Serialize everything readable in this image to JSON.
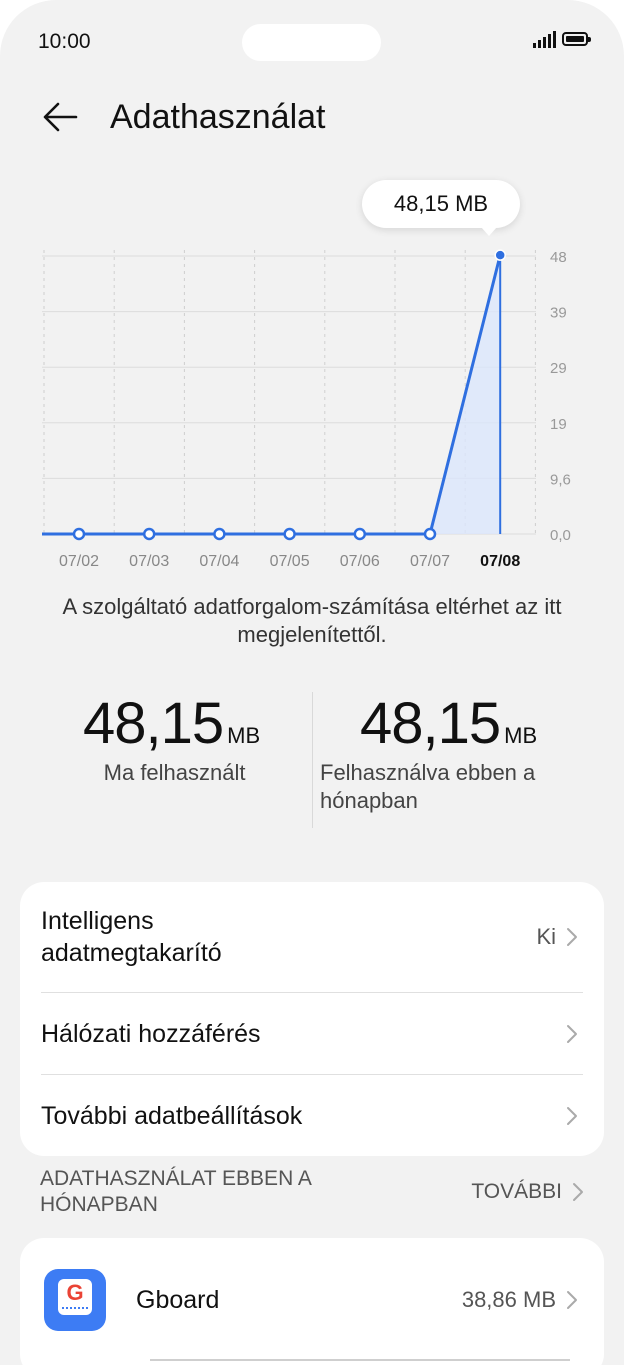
{
  "status_bar": {
    "time": "10:00"
  },
  "header": {
    "title": "Adathasználat"
  },
  "chart_data": {
    "type": "area",
    "categories": [
      "07/02",
      "07/03",
      "07/04",
      "07/05",
      "07/06",
      "07/07",
      "07/08"
    ],
    "series": [
      {
        "values": [
          0,
          0,
          0,
          0,
          0,
          0,
          48.15
        ]
      }
    ],
    "y_ticks": [
      "48",
      "39",
      "29",
      "19",
      "9,6",
      "0,0"
    ],
    "ylim": [
      0,
      48
    ],
    "highlighted_label": "48,15 MB",
    "selected_category": "07/08",
    "grid": true,
    "colors": {
      "line": "#2f6fe0",
      "fill": "#dbe6fb"
    }
  },
  "disclaimer": "A szolgáltató adatforgalom-számítása eltérhet az itt megjelenítettől.",
  "stats": {
    "today": {
      "value": "48,15",
      "unit": "MB",
      "label": "Ma felhasznált"
    },
    "month": {
      "value": "48,15",
      "unit": "MB",
      "label": "Felhasználva ebben a hónapban"
    }
  },
  "settings": {
    "smart_saver": {
      "label": "Intelligens adatmegtakarító",
      "value": "Ki"
    },
    "network_access": {
      "label": "Hálózati hozzáférés"
    },
    "more_settings": {
      "label": "További adatbeállítások"
    }
  },
  "usage_section": {
    "title": "ADATHASZNÁLAT EBBEN A HÓNAPBAN",
    "more": "TOVÁBBI"
  },
  "apps": [
    {
      "name": "Gboard",
      "usage": "38,86 MB",
      "icon": "gboard-icon"
    }
  ]
}
